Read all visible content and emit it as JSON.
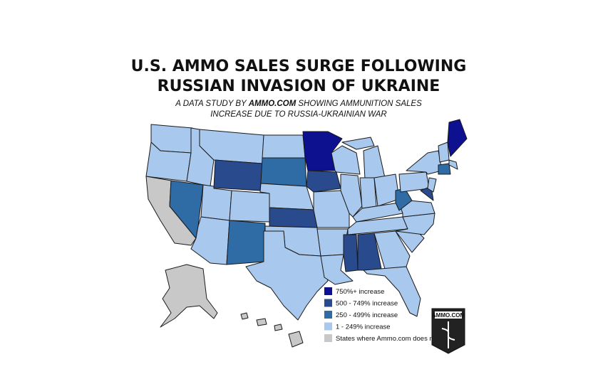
{
  "header": {
    "title_lines": [
      "U.S. AMMO SALES SURGE FOLLOWING",
      "RUSSIAN INVASION OF UKRAINE"
    ],
    "subtitle": {
      "before": "A DATA STUDY BY",
      "brand": "AMMO.COM",
      "after": "SHOWING AMMUNITION SALES",
      "line2": "INCREASE DUE TO RUSSIA-UKRAINIAN WAR"
    }
  },
  "legend": [
    {
      "label": "750%+ increase",
      "color": "#0d118f"
    },
    {
      "label": "500 - 749% increase",
      "color": "#2a4a8e"
    },
    {
      "label": "250 - 499% increase",
      "color": "#2f6ca6"
    },
    {
      "label": "1 - 249% increase",
      "color": "#a8c8ee"
    },
    {
      "label": "States where Ammo.com does not ship",
      "color": "#c8c8c8"
    }
  ],
  "logo": "AMMO.COM"
}
